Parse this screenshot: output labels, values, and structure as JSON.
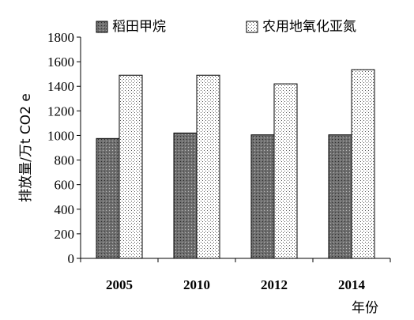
{
  "chart_data": {
    "type": "bar",
    "categories": [
      "2005",
      "2010",
      "2012",
      "2014"
    ],
    "series": [
      {
        "name": "稻田甲烷",
        "values": [
          975,
          1020,
          1005,
          1005
        ],
        "fill": "#7a7a7a",
        "pattern": "dark-dots"
      },
      {
        "name": "农用地氧化亚氮",
        "values": [
          1490,
          1490,
          1420,
          1535
        ],
        "fill": "#ffffff",
        "pattern": "light-dots"
      }
    ],
    "xlabel": "年份",
    "ylabel": "排放量/万t CO2 e",
    "ylim": [
      0,
      1800
    ],
    "yticks": [
      0,
      200,
      400,
      600,
      800,
      1000,
      1200,
      1400,
      1600,
      1800
    ],
    "grid": false,
    "legend_position": "top"
  }
}
